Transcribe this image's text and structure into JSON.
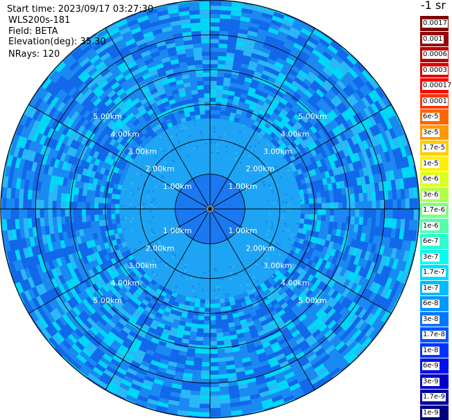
{
  "header": {
    "start_time": "Start time: 2023/09/17 03:27:30",
    "instrument": "WLS200s-181",
    "field": "Field: BETA",
    "elevation": "Elevation(deg): 35.30",
    "nrays": "NRays: 120"
  },
  "colorbar": {
    "units_label": "-1 sr",
    "levels": [
      {
        "label": "0.0017",
        "color": "#800000"
      },
      {
        "label": "0.001",
        "color": "#9a0000"
      },
      {
        "label": "0.0006",
        "color": "#b80000"
      },
      {
        "label": "0.0003",
        "color": "#d80000"
      },
      {
        "label": "0.00017",
        "color": "#ff0000"
      },
      {
        "label": "0.0001",
        "color": "#ff3300"
      },
      {
        "label": "6e-5",
        "color": "#ff6600"
      },
      {
        "label": "3e-5",
        "color": "#ff9900"
      },
      {
        "label": "1.7e-5",
        "color": "#ffcc00"
      },
      {
        "label": "1e-5",
        "color": "#ffee00"
      },
      {
        "label": "6e-6",
        "color": "#ddff22"
      },
      {
        "label": "3e-6",
        "color": "#b0ff4d"
      },
      {
        "label": "1.7e-6",
        "color": "#80ff80"
      },
      {
        "label": "1e-6",
        "color": "#55ffaa"
      },
      {
        "label": "6e-7",
        "color": "#2effd0"
      },
      {
        "label": "3e-7",
        "color": "#00ffee"
      },
      {
        "label": "1.7e-7",
        "color": "#00ddff"
      },
      {
        "label": "1e-7",
        "color": "#00bbff"
      },
      {
        "label": "6e-8",
        "color": "#0099ff"
      },
      {
        "label": "3e-8",
        "color": "#0077ff"
      },
      {
        "label": "1.7e-8",
        "color": "#0055ff"
      },
      {
        "label": "1e-8",
        "color": "#0033ff"
      },
      {
        "label": "6e-9",
        "color": "#0011ee"
      },
      {
        "label": "3e-9",
        "color": "#0000cc"
      },
      {
        "label": "1.7e-9",
        "color": "#0000a0"
      },
      {
        "label": "1e-9",
        "color": "#000080"
      }
    ]
  },
  "chart_data": {
    "type": "heatmap",
    "projection": "polar-ppi",
    "field": "BETA",
    "nrays": 120,
    "max_range_km": 6.0,
    "range_rings_km": [
      1,
      2,
      3,
      4,
      5
    ],
    "ring_labels": [
      "1.00km",
      "2.00km",
      "3.00km",
      "4.00km",
      "5.00km"
    ],
    "spoke_angles_deg": [
      0,
      30,
      60,
      90,
      120,
      150,
      180,
      210,
      240,
      270,
      300,
      330
    ],
    "grid": true,
    "inner_zone_km": 1.0,
    "middle_zone_km": 2.6,
    "colors": {
      "inner": "#1a78f0",
      "middle": "#1ea4f4",
      "outer_dark": "#1268ea",
      "outer_mid": "#1a8af2",
      "outer_light": "#2ab8f6",
      "outer_cyan": "#00d8f8",
      "ring_line": "#000000"
    }
  }
}
